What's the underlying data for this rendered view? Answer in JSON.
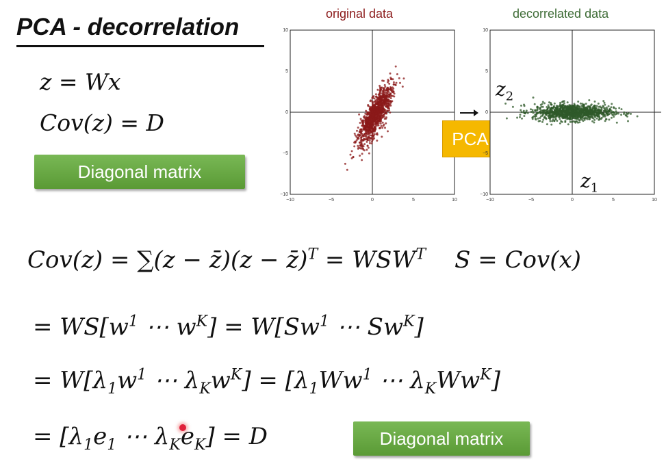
{
  "slide": {
    "title": "PCA - decorrelation",
    "eq_z": "z = Wx",
    "eq_cov": "Cov(z) = D",
    "diag_label_1": "Diagonal matrix",
    "diag_label_2": "Diagonal matrix",
    "plot_left_title": "original data",
    "plot_right_title": "decorrelated data",
    "pca_label": "PCA",
    "axis_ticks": [
      "−10",
      "−5",
      "0",
      "5",
      "10"
    ],
    "z1_label": "z",
    "z1_sub": "1",
    "z2_label": "z",
    "z2_sub": "2",
    "colors": {
      "original": "#8b1a1a",
      "decorrelated": "#2f5a2a",
      "accent": "#f5b800",
      "green_button": "#6aa944"
    }
  },
  "derivation": {
    "line1": {
      "lhs": "Cov(z) = ∑(z − z̄)(z − z̄)",
      "T1": "T",
      "mid": " = WSW",
      "T2": "T",
      "rhs": "S = Cov(x)"
    },
    "line2": {
      "a": "= WS[w",
      "a_sup": "1",
      "b": " ⋯  w",
      "b_sup": "K",
      "c": "] = W[Sw",
      "c_sup": "1",
      "d": " ⋯  Sw",
      "d_sup": "K",
      "e": "]"
    },
    "line3": {
      "a": "= W[λ",
      "a_sub": "1",
      "b": "w",
      "b_sup": "1",
      "c": " ⋯  λ",
      "c_sub": "K",
      "d": "w",
      "d_sup": "K",
      "e": "] = [λ",
      "e_sub": "1",
      "f": "Ww",
      "f_sup": "1",
      "g": " ⋯  λ",
      "g_sub": "K",
      "h": "Ww",
      "h_sup": "K",
      "i": "]"
    },
    "line4": {
      "a": "= [λ",
      "a_sub": "1",
      "b": "e",
      "b_sub": "1",
      "c": " ⋯  λ",
      "c_sub": "K",
      "d": "e",
      "d_sub": "K",
      "e": "] = D"
    }
  }
}
